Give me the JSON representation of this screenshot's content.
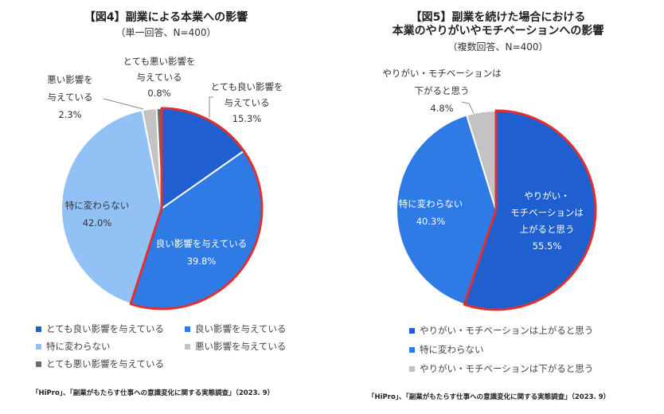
{
  "chart_data": [
    {
      "type": "pie",
      "title": "【図4】副業による本業への影響",
      "subtitle": "（単一回答、N=400）",
      "slices": [
        {
          "label": "とても良い影響を与えている",
          "value": 15.3,
          "color": "#1f5fcf",
          "value_label": "15.3%"
        },
        {
          "label": "良い影響を与えている",
          "value": 39.8,
          "color": "#2e7be6",
          "value_label": "39.8%"
        },
        {
          "label": "特に変わらない",
          "value": 42.0,
          "color": "#92c2f5",
          "value_label": "42.0%"
        },
        {
          "label": "悪い影響を与えている",
          "value": 2.3,
          "color": "#c3c3c3",
          "value_label": "2.3%"
        },
        {
          "label": "とても悪い影響を与えている",
          "value": 0.8,
          "color": "#6b6b6b",
          "value_label": "0.8%"
        }
      ],
      "highlight_color": "#e03030",
      "highlight_slices": [
        0,
        1
      ],
      "footer": "「HiPro」、「副業がもたらす仕事への意識変化に関する実態調査」（2023. 9）"
    },
    {
      "type": "pie",
      "title": "【図5】副業を続けた場合における\n本業のやりがいやモチベーションへの影響",
      "subtitle": "（複数回答、N=400）",
      "slices": [
        {
          "label": "やりがい・モチベーションは上がると思う",
          "value": 55.5,
          "color": "#1f5fcf",
          "value_label": "55.5%"
        },
        {
          "label": "特に変わらない",
          "value": 40.3,
          "color": "#2e7be6",
          "value_label": "40.3%"
        },
        {
          "label": "やりがい・モチベーションは下がると思う",
          "value": 4.8,
          "color": "#c3c3c3",
          "value_label": "4.8%"
        }
      ],
      "highlight_color": "#e03030",
      "highlight_slices": [
        0
      ],
      "footer": "「HiPro」、「副業がもたらす仕事への意識変化に関する実態調査」（2023. 9）"
    }
  ],
  "labels": {
    "left": [
      {
        "lines": [
          "とても良い影響を",
          "与えている"
        ],
        "value": "15.3%"
      },
      {
        "lines": [
          "良い影響を与えている"
        ],
        "value": "39.8%"
      },
      {
        "lines": [
          "特に変わらない"
        ],
        "value": "42.0%"
      },
      {
        "lines": [
          "悪い影響を",
          "与えている"
        ],
        "value": "2.3%"
      },
      {
        "lines": [
          "とても悪い影響を",
          "与えている"
        ],
        "value": "0.8%"
      }
    ],
    "right": [
      {
        "lines": [
          "やりがい・",
          "モチベーションは",
          "上がると思う"
        ],
        "value": "55.5%"
      },
      {
        "lines": [
          "特に変わらない"
        ],
        "value": "40.3%"
      },
      {
        "lines": [
          "やりがい・モチベーションは",
          "下がると思う"
        ],
        "value": "4.8%"
      }
    ]
  }
}
